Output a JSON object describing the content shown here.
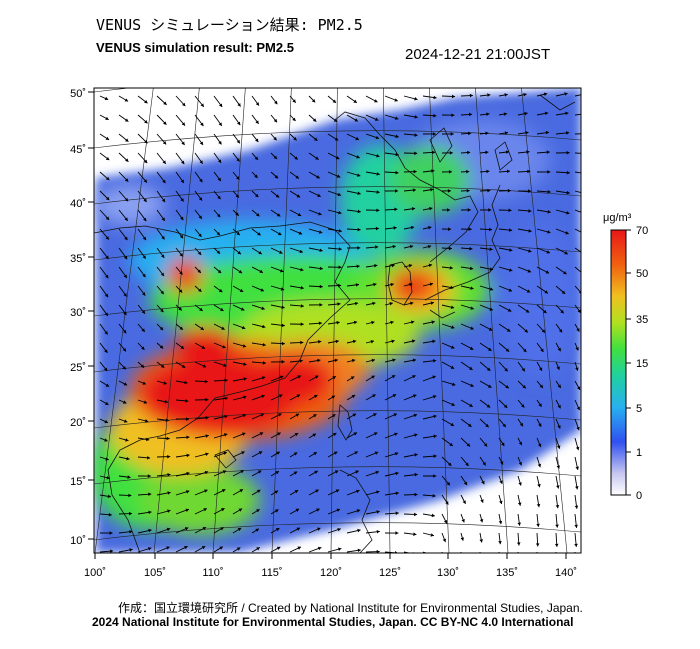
{
  "header": {
    "title_jp": "VENUS シミュレーション結果: PM2.5",
    "title_en": "VENUS simulation result: PM2.5",
    "datetime": "2024-12-21 21:00JST"
  },
  "map": {
    "lon_labels": [
      "100˚",
      "105˚",
      "110˚",
      "115˚",
      "120˚",
      "125˚",
      "130˚",
      "135˚",
      "140˚"
    ],
    "lat_labels": [
      "50˚",
      "45˚",
      "40˚",
      "35˚",
      "30˚",
      "25˚",
      "20˚",
      "15˚",
      "10˚"
    ],
    "lon_range": [
      100,
      141
    ],
    "lat_range": [
      9,
      51
    ]
  },
  "colorbar": {
    "unit": "μg/m³",
    "tick_labels": [
      "70",
      "50",
      "35",
      "15",
      "5",
      "1",
      "0"
    ],
    "colors": [
      "#ffffff",
      "#3050f0",
      "#28b0f0",
      "#20d0a0",
      "#40e040",
      "#b0e020",
      "#f0c020",
      "#f06010",
      "#e81818"
    ]
  },
  "footer": {
    "credit": "作成：国立環境研究所 / Created by National Institute for Environmental Studies, Japan.",
    "copyright": "2024 National Institute for Environmental Studies, Japan. CC BY-NC 4.0 International"
  }
}
